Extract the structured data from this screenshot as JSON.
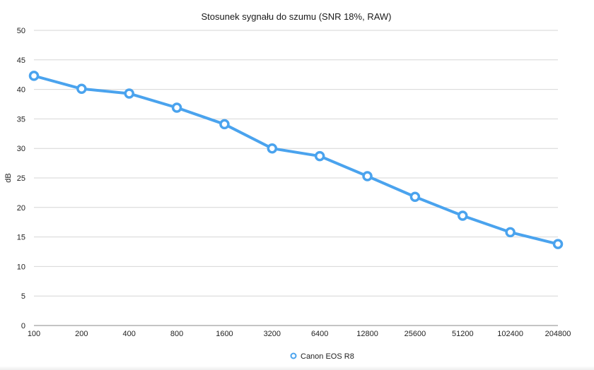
{
  "chart_data": {
    "type": "line",
    "title": "Stosunek sygnału do szumu (SNR 18%, RAW)",
    "xlabel": "",
    "ylabel": "dB",
    "ylim": [
      0,
      50
    ],
    "yticks": [
      "0",
      "5",
      "10",
      "15",
      "20",
      "25",
      "30",
      "35",
      "40",
      "45",
      "50"
    ],
    "categories": [
      "100",
      "200",
      "400",
      "800",
      "1600",
      "3200",
      "6400",
      "12800",
      "25600",
      "51200",
      "102400",
      "204800"
    ],
    "series": [
      {
        "name": "Canon EOS R8",
        "values": [
          42.3,
          40.1,
          39.3,
          36.9,
          34.1,
          30.0,
          28.7,
          25.3,
          21.8,
          18.6,
          15.8,
          13.8
        ]
      }
    ],
    "grid": true,
    "legend": "bottom-center",
    "colors": {
      "series": "#4aa3ee",
      "marker_fill": "#ffffff",
      "grid": "#d6d6d6"
    }
  }
}
